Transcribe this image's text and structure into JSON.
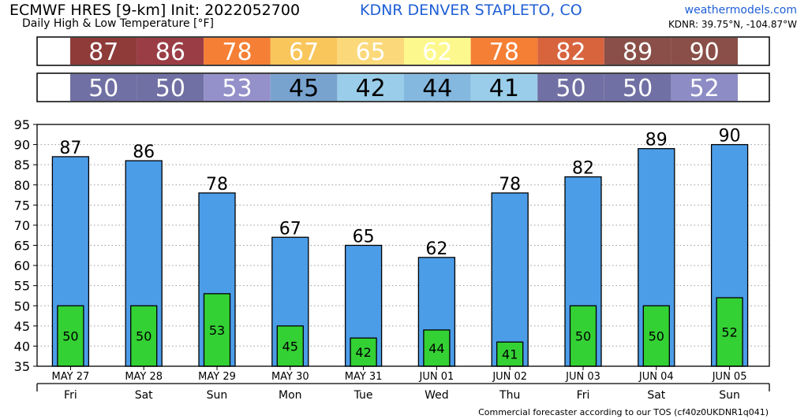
{
  "header": {
    "title": "ECMWF HRES [9-km] Init: 2022052700",
    "subtitle": "Daily High & Low Temperature [°F]",
    "station": "KDNR DENVER STAPLETO, CO",
    "brand": "weathermodels.com",
    "coords": "KDNR: 39.75°N, -104.87°W"
  },
  "footer": "Commercial forecaster according to our TOS (cf40z0UKDNR1q041)",
  "colors": {
    "high_bar": "#4c9de8",
    "low_bar": "#34d134",
    "high_cells": [
      "#8e3b3a",
      "#9b3d45",
      "#f57f35",
      "#f9c65b",
      "#fbd97a",
      "#fdf88d",
      "#f57f35",
      "#d8643e",
      "#8a4f48",
      "#8a4f48"
    ],
    "low_cells": [
      "#7170a4",
      "#7170a4",
      "#9490c9",
      "#79a3cf",
      "#9acde9",
      "#85b8df",
      "#9acde9",
      "#7170a4",
      "#7170a4",
      "#8d8cc4"
    ]
  },
  "chart_data": {
    "type": "bar",
    "dates": [
      "MAY 27",
      "MAY 28",
      "MAY 29",
      "MAY 30",
      "MAY 31",
      "JUN 01",
      "JUN 02",
      "JUN 03",
      "JUN 04",
      "JUN 05"
    ],
    "weekdays": [
      "Fri",
      "Sat",
      "Sun",
      "Mon",
      "Tue",
      "Wed",
      "Thu",
      "Fri",
      "Sat",
      "Sun"
    ],
    "series": [
      {
        "values": [
          87,
          86,
          78,
          67,
          65,
          62,
          78,
          82,
          89,
          90
        ]
      },
      {
        "values": [
          50,
          50,
          53,
          45,
          42,
          44,
          41,
          50,
          50,
          52
        ]
      }
    ],
    "ylim": [
      35,
      95
    ],
    "yticks": [
      35,
      40,
      45,
      50,
      55,
      60,
      65,
      70,
      75,
      80,
      85,
      90,
      95
    ],
    "grid": true
  }
}
